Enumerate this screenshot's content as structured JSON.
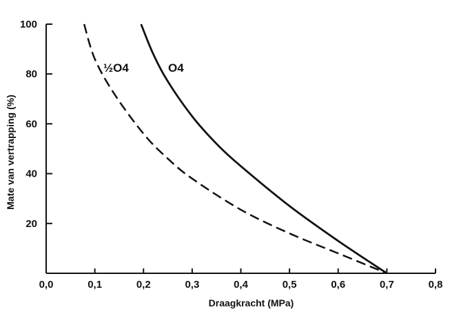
{
  "chart_data": {
    "type": "line",
    "title": "",
    "xlabel": "Draagkracht (MPa)",
    "ylabel": "Mate van vertrapping (%)",
    "xlim": [
      0.0,
      0.8
    ],
    "ylim": [
      0,
      100
    ],
    "x_ticks": [
      "0,0",
      "0,1",
      "0,2",
      "0,3",
      "0,4",
      "0,5",
      "0,6",
      "0,7",
      "0,8"
    ],
    "y_ticks": [
      "20",
      "40",
      "60",
      "80",
      "100"
    ],
    "grid": false,
    "legend": "none (inline labels)",
    "series": [
      {
        "name": "½O4",
        "style": "dashed",
        "color": "#111111",
        "points": [
          {
            "x": 0.078,
            "y": 100
          },
          {
            "x": 0.1,
            "y": 86
          },
          {
            "x": 0.14,
            "y": 72
          },
          {
            "x": 0.2,
            "y": 56
          },
          {
            "x": 0.25,
            "y": 46
          },
          {
            "x": 0.3,
            "y": 38
          },
          {
            "x": 0.4,
            "y": 25.5
          },
          {
            "x": 0.5,
            "y": 16
          },
          {
            "x": 0.6,
            "y": 8
          },
          {
            "x": 0.7,
            "y": 0
          }
        ]
      },
      {
        "name": "O4",
        "style": "solid",
        "color": "#111111",
        "points": [
          {
            "x": 0.195,
            "y": 100
          },
          {
            "x": 0.22,
            "y": 88
          },
          {
            "x": 0.25,
            "y": 77
          },
          {
            "x": 0.3,
            "y": 63
          },
          {
            "x": 0.35,
            "y": 52
          },
          {
            "x": 0.4,
            "y": 43
          },
          {
            "x": 0.5,
            "y": 27
          },
          {
            "x": 0.6,
            "y": 13
          },
          {
            "x": 0.7,
            "y": 0
          }
        ]
      }
    ]
  }
}
